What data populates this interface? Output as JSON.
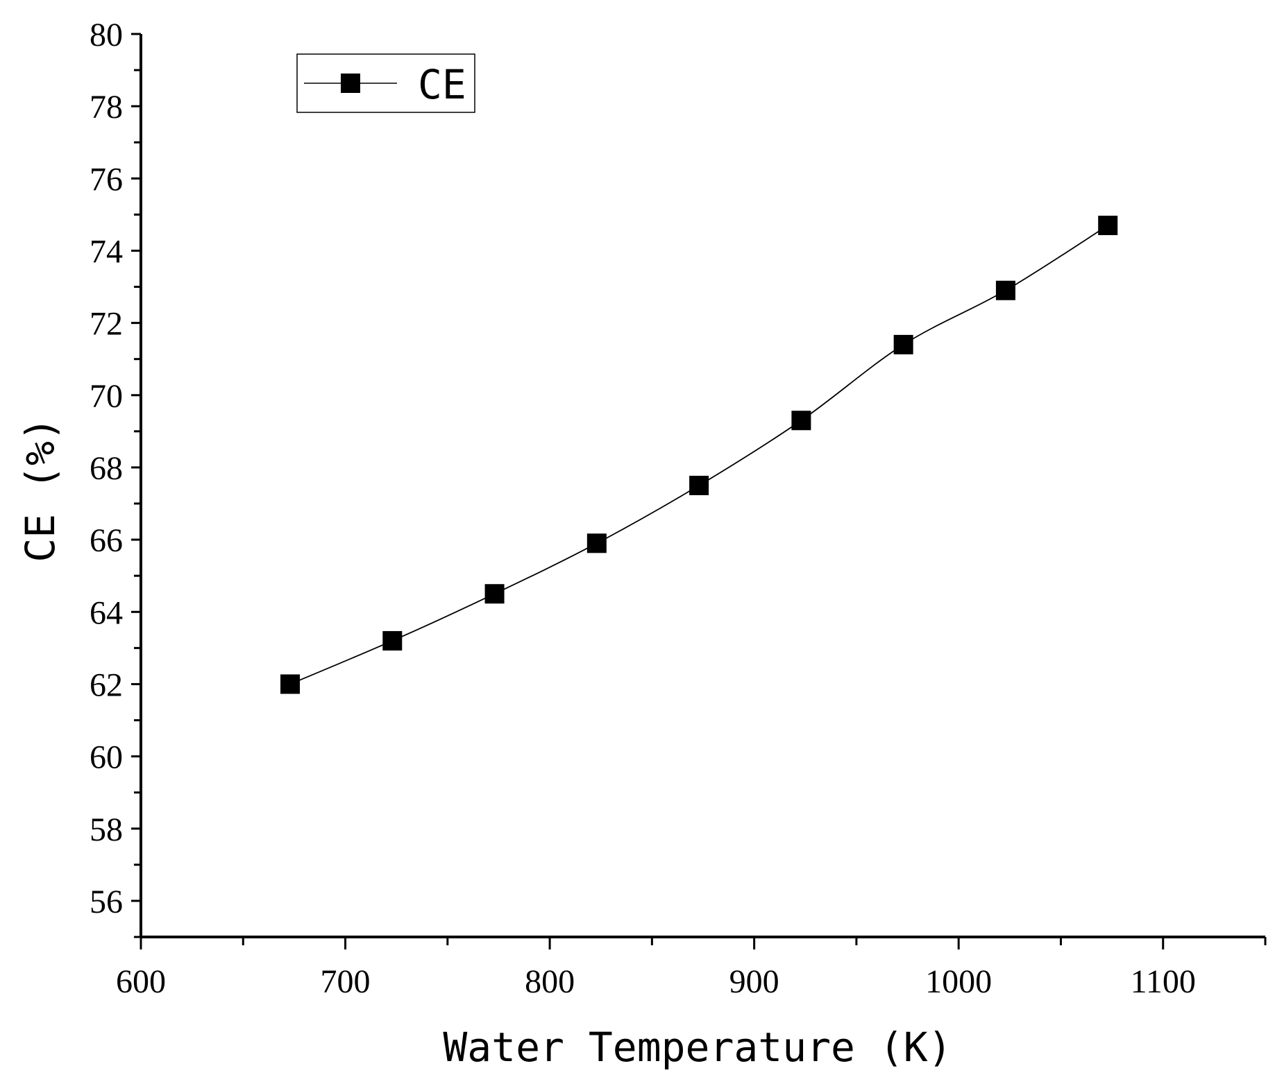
{
  "chart_data": {
    "type": "line",
    "title": "",
    "xlabel": "Water Temperature (K)",
    "ylabel": "CE (%)",
    "xlim": [
      600,
      1150
    ],
    "ylim": [
      55,
      80
    ],
    "x_ticks": [
      600,
      700,
      800,
      900,
      1000,
      1100
    ],
    "y_ticks": [
      56,
      58,
      60,
      62,
      64,
      66,
      68,
      70,
      72,
      74,
      76,
      78,
      80
    ],
    "grid": false,
    "legend": {
      "position": "top-left",
      "entries": [
        "CE"
      ]
    },
    "series": [
      {
        "name": "CE",
        "marker": "square",
        "color": "#000000",
        "x": [
          673,
          723,
          773,
          823,
          873,
          923,
          973,
          1023,
          1073
        ],
        "values": [
          62.0,
          63.2,
          64.5,
          65.9,
          67.5,
          69.3,
          71.4,
          72.9,
          74.7
        ]
      }
    ]
  }
}
